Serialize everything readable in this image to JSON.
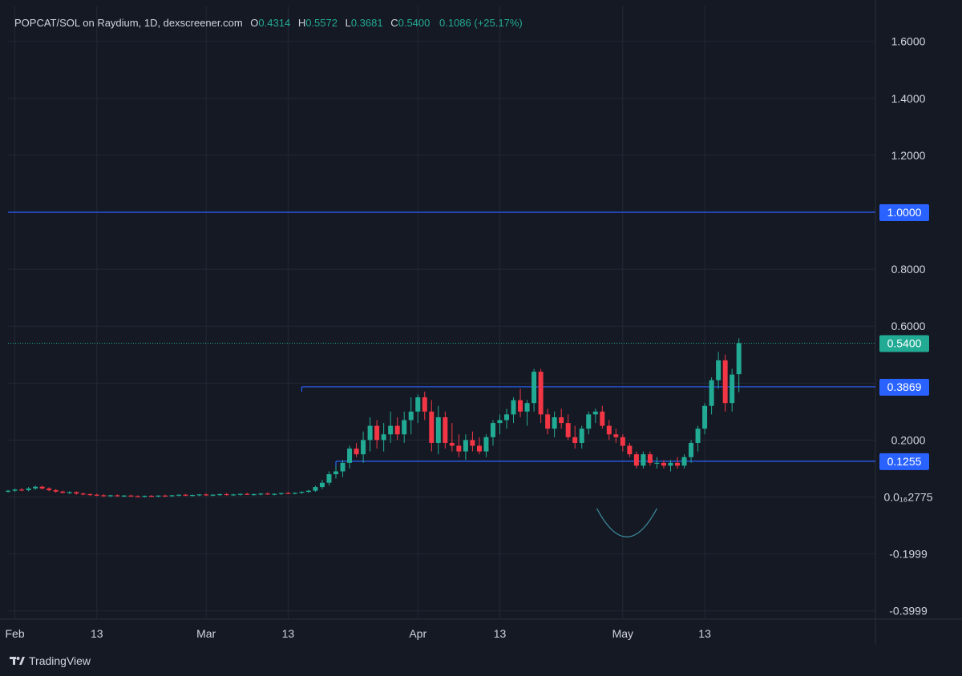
{
  "header": {
    "symbol": "POPCAT/SOL on Raydium, 1D, dexscreener.com",
    "o_label": "O",
    "o": "0.4314",
    "h_label": "H",
    "h": "0.5572",
    "l_label": "L",
    "l": "0.3681",
    "c_label": "C",
    "c": "0.5400",
    "change": "0.1086 (+25.17%)"
  },
  "brand": "TradingView",
  "colors": {
    "background": "#151924",
    "grid": "#232836",
    "up": "#22ab94",
    "down": "#f23645",
    "level_line": "#2962ff",
    "level_label_bg": "#2962ff",
    "last_price_bg": "#22ab94",
    "axis_text": "#d1d4dc"
  },
  "chart_data": {
    "type": "candlestick",
    "timeframe": "1D",
    "y_ticks": [
      {
        "value": 1.6,
        "label": "1.6000"
      },
      {
        "value": 1.4,
        "label": "1.4000"
      },
      {
        "value": 1.2,
        "label": "1.2000"
      },
      {
        "value": 0.8,
        "label": "0.8000"
      },
      {
        "value": 0.6,
        "label": "0.6000"
      },
      {
        "value": 0.2,
        "label": "0.2000"
      },
      {
        "value": 0.0,
        "label": "0.0₁₆2775"
      },
      {
        "value": -0.2,
        "label": "-0.1999"
      },
      {
        "value": -0.4,
        "label": "-0.3999"
      }
    ],
    "x_ticks": [
      {
        "day": 1,
        "label": "Feb"
      },
      {
        "day": 13,
        "label": "13"
      },
      {
        "day": 29,
        "label": "Mar"
      },
      {
        "day": 41,
        "label": "13"
      },
      {
        "day": 60,
        "label": "Apr"
      },
      {
        "day": 72,
        "label": "13"
      },
      {
        "day": 90,
        "label": "May"
      },
      {
        "day": 102,
        "label": "13"
      }
    ],
    "levels": [
      {
        "value": 1.0,
        "label": "1.0000",
        "from_day": null
      },
      {
        "value": 0.3869,
        "label": "0.3869",
        "from_day": 43
      },
      {
        "value": 0.1255,
        "label": "0.1255",
        "from_day": 48
      }
    ],
    "last_price": {
      "value": 0.54,
      "label": "0.5400"
    },
    "ohlc": [
      [
        0.02,
        0.025,
        0.015,
        0.022
      ],
      [
        0.022,
        0.03,
        0.018,
        0.026
      ],
      [
        0.026,
        0.032,
        0.02,
        0.024
      ],
      [
        0.024,
        0.035,
        0.02,
        0.03
      ],
      [
        0.03,
        0.04,
        0.025,
        0.036
      ],
      [
        0.036,
        0.04,
        0.026,
        0.03
      ],
      [
        0.03,
        0.034,
        0.02,
        0.024
      ],
      [
        0.024,
        0.028,
        0.015,
        0.019
      ],
      [
        0.019,
        0.022,
        0.012,
        0.015
      ],
      [
        0.015,
        0.02,
        0.01,
        0.017
      ],
      [
        0.017,
        0.02,
        0.008,
        0.012
      ],
      [
        0.012,
        0.016,
        0.006,
        0.01
      ],
      [
        0.01,
        0.013,
        0.004,
        0.008
      ],
      [
        0.008,
        0.012,
        0.003,
        0.006
      ],
      [
        0.006,
        0.01,
        0.001,
        0.004
      ],
      [
        0.004,
        0.008,
        0.0,
        0.006
      ],
      [
        0.006,
        0.009,
        0.001,
        0.003
      ],
      [
        0.003,
        0.007,
        0.0,
        0.005
      ],
      [
        0.005,
        0.008,
        0.001,
        0.003
      ],
      [
        0.003,
        0.006,
        -0.001,
        0.001
      ],
      [
        0.001,
        0.005,
        -0.002,
        0.004
      ],
      [
        0.004,
        0.007,
        0.0,
        0.002
      ],
      [
        0.002,
        0.006,
        -0.001,
        0.005
      ],
      [
        0.005,
        0.008,
        0.001,
        0.004
      ],
      [
        0.004,
        0.007,
        0.0,
        0.006
      ],
      [
        0.006,
        0.009,
        0.002,
        0.008
      ],
      [
        0.008,
        0.011,
        0.003,
        0.005
      ],
      [
        0.005,
        0.009,
        0.002,
        0.007
      ],
      [
        0.007,
        0.01,
        0.003,
        0.009
      ],
      [
        0.009,
        0.013,
        0.004,
        0.006
      ],
      [
        0.006,
        0.01,
        0.003,
        0.008
      ],
      [
        0.008,
        0.012,
        0.004,
        0.01
      ],
      [
        0.01,
        0.014,
        0.005,
        0.007
      ],
      [
        0.007,
        0.011,
        0.004,
        0.009
      ],
      [
        0.009,
        0.012,
        0.005,
        0.011
      ],
      [
        0.011,
        0.015,
        0.007,
        0.008
      ],
      [
        0.008,
        0.012,
        0.005,
        0.01
      ],
      [
        0.01,
        0.014,
        0.006,
        0.012
      ],
      [
        0.012,
        0.016,
        0.008,
        0.009
      ],
      [
        0.009,
        0.013,
        0.006,
        0.011
      ],
      [
        0.011,
        0.015,
        0.007,
        0.014
      ],
      [
        0.014,
        0.018,
        0.01,
        0.012
      ],
      [
        0.012,
        0.016,
        0.009,
        0.015
      ],
      [
        0.015,
        0.02,
        0.011,
        0.018
      ],
      [
        0.018,
        0.025,
        0.014,
        0.022
      ],
      [
        0.022,
        0.04,
        0.018,
        0.035
      ],
      [
        0.035,
        0.06,
        0.028,
        0.05
      ],
      [
        0.05,
        0.09,
        0.04,
        0.08
      ],
      [
        0.08,
        0.11,
        0.065,
        0.09
      ],
      [
        0.09,
        0.13,
        0.07,
        0.12
      ],
      [
        0.12,
        0.18,
        0.1,
        0.17
      ],
      [
        0.17,
        0.19,
        0.14,
        0.15
      ],
      [
        0.15,
        0.23,
        0.12,
        0.2
      ],
      [
        0.2,
        0.28,
        0.16,
        0.25
      ],
      [
        0.25,
        0.27,
        0.17,
        0.2
      ],
      [
        0.2,
        0.26,
        0.16,
        0.22
      ],
      [
        0.22,
        0.3,
        0.19,
        0.25
      ],
      [
        0.25,
        0.28,
        0.2,
        0.22
      ],
      [
        0.22,
        0.3,
        0.19,
        0.27
      ],
      [
        0.27,
        0.35,
        0.22,
        0.3
      ],
      [
        0.3,
        0.36,
        0.26,
        0.35
      ],
      [
        0.35,
        0.37,
        0.27,
        0.3
      ],
      [
        0.3,
        0.34,
        0.16,
        0.19
      ],
      [
        0.19,
        0.32,
        0.15,
        0.28
      ],
      [
        0.28,
        0.3,
        0.17,
        0.19
      ],
      [
        0.19,
        0.26,
        0.16,
        0.18
      ],
      [
        0.18,
        0.22,
        0.14,
        0.16
      ],
      [
        0.16,
        0.22,
        0.13,
        0.2
      ],
      [
        0.2,
        0.23,
        0.16,
        0.18
      ],
      [
        0.18,
        0.21,
        0.15,
        0.16
      ],
      [
        0.16,
        0.22,
        0.14,
        0.21
      ],
      [
        0.21,
        0.27,
        0.18,
        0.26
      ],
      [
        0.26,
        0.29,
        0.22,
        0.27
      ],
      [
        0.27,
        0.31,
        0.24,
        0.29
      ],
      [
        0.29,
        0.35,
        0.26,
        0.34
      ],
      [
        0.34,
        0.38,
        0.28,
        0.3
      ],
      [
        0.3,
        0.34,
        0.25,
        0.33
      ],
      [
        0.33,
        0.45,
        0.3,
        0.44
      ],
      [
        0.44,
        0.45,
        0.26,
        0.29
      ],
      [
        0.29,
        0.31,
        0.22,
        0.24
      ],
      [
        0.24,
        0.3,
        0.21,
        0.28
      ],
      [
        0.28,
        0.31,
        0.24,
        0.26
      ],
      [
        0.26,
        0.29,
        0.2,
        0.21
      ],
      [
        0.21,
        0.25,
        0.17,
        0.19
      ],
      [
        0.19,
        0.25,
        0.17,
        0.24
      ],
      [
        0.24,
        0.3,
        0.22,
        0.29
      ],
      [
        0.29,
        0.31,
        0.26,
        0.3
      ],
      [
        0.3,
        0.32,
        0.24,
        0.25
      ],
      [
        0.25,
        0.27,
        0.2,
        0.22
      ],
      [
        0.22,
        0.24,
        0.19,
        0.21
      ],
      [
        0.21,
        0.22,
        0.16,
        0.18
      ],
      [
        0.18,
        0.19,
        0.14,
        0.15
      ],
      [
        0.15,
        0.16,
        0.1,
        0.11
      ],
      [
        0.11,
        0.16,
        0.1,
        0.15
      ],
      [
        0.15,
        0.16,
        0.11,
        0.12
      ],
      [
        0.12,
        0.14,
        0.1,
        0.12
      ],
      [
        0.12,
        0.13,
        0.1,
        0.11
      ],
      [
        0.11,
        0.13,
        0.09,
        0.12
      ],
      [
        0.12,
        0.14,
        0.1,
        0.11
      ],
      [
        0.11,
        0.15,
        0.1,
        0.14
      ],
      [
        0.14,
        0.2,
        0.12,
        0.19
      ],
      [
        0.19,
        0.25,
        0.16,
        0.24
      ],
      [
        0.24,
        0.33,
        0.22,
        0.32
      ],
      [
        0.32,
        0.42,
        0.29,
        0.41
      ],
      [
        0.41,
        0.51,
        0.38,
        0.48
      ],
      [
        0.48,
        0.5,
        0.3,
        0.33
      ],
      [
        0.33,
        0.45,
        0.3,
        0.43
      ],
      [
        0.4314,
        0.5572,
        0.3681,
        0.54
      ]
    ]
  }
}
